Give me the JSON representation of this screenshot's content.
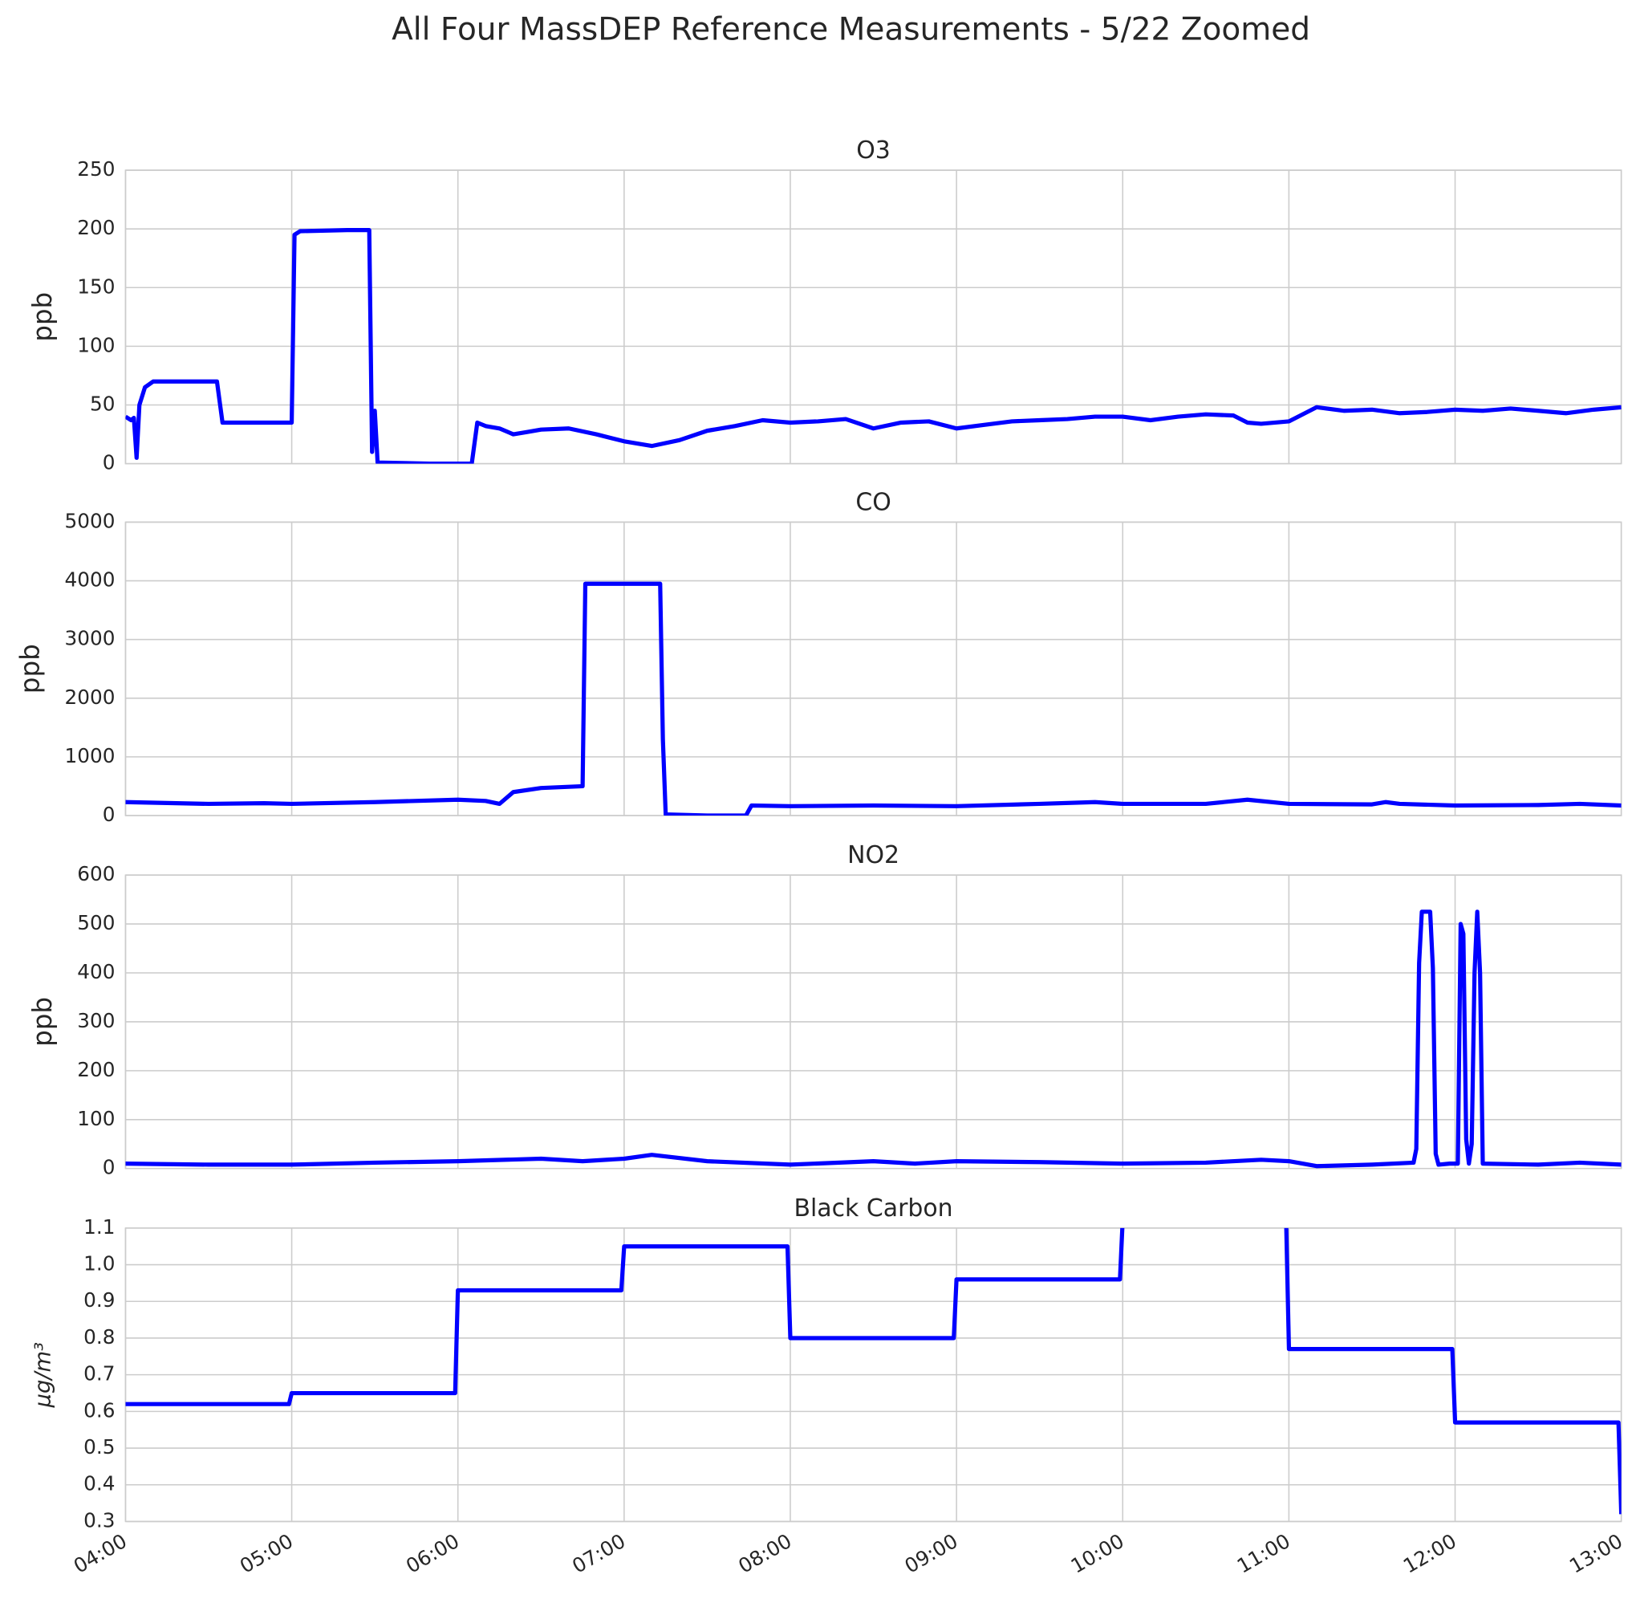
{
  "title": "All Four MassDEP Reference Measurements - 5/22 Zoomed",
  "xlim": [
    "04:00",
    "13:00"
  ],
  "xticks": [
    "04:00",
    "05:00",
    "06:00",
    "07:00",
    "08:00",
    "09:00",
    "10:00",
    "11:00",
    "12:00",
    "13:00"
  ],
  "chart_data": [
    {
      "type": "line",
      "title": "O3",
      "ylabel": "ppb",
      "color": "#0000ff",
      "grid": true,
      "ylim": [
        0,
        250
      ],
      "yticks": [
        0,
        50,
        100,
        150,
        200,
        250
      ],
      "x": [
        "04:00",
        "04:02",
        "04:03",
        "04:04",
        "04:05",
        "04:07",
        "04:10",
        "04:33",
        "04:35",
        "05:00",
        "05:01",
        "05:03",
        "05:20",
        "05:28",
        "05:29",
        "05:30",
        "05:31",
        "05:50",
        "06:05",
        "06:07",
        "06:10",
        "06:15",
        "06:20",
        "06:25",
        "06:30",
        "06:40",
        "06:50",
        "07:00",
        "07:10",
        "07:20",
        "07:30",
        "07:40",
        "07:50",
        "08:00",
        "08:10",
        "08:20",
        "08:30",
        "08:40",
        "08:50",
        "09:00",
        "09:10",
        "09:20",
        "09:30",
        "09:40",
        "09:50",
        "10:00",
        "10:10",
        "10:20",
        "10:30",
        "10:40",
        "10:45",
        "10:50",
        "11:00",
        "11:10",
        "11:20",
        "11:30",
        "11:40",
        "11:50",
        "12:00",
        "12:10",
        "12:20",
        "12:30",
        "12:40",
        "12:50",
        "13:00"
      ],
      "values": [
        40,
        37,
        39,
        5,
        50,
        65,
        70,
        70,
        35,
        35,
        195,
        198,
        199,
        199,
        10,
        45,
        1,
        0,
        0,
        35,
        32,
        30,
        25,
        27,
        29,
        30,
        25,
        19,
        15,
        20,
        28,
        32,
        37,
        35,
        36,
        38,
        30,
        35,
        36,
        30,
        33,
        36,
        37,
        38,
        40,
        40,
        37,
        40,
        42,
        41,
        35,
        34,
        36,
        48,
        45,
        46,
        43,
        44,
        46,
        45,
        47,
        45,
        43,
        46,
        48
      ]
    },
    {
      "type": "line",
      "title": "CO",
      "ylabel": "ppb",
      "color": "#0000ff",
      "grid": true,
      "ylim": [
        0,
        5000
      ],
      "yticks": [
        0,
        1000,
        2000,
        3000,
        4000,
        5000
      ],
      "x": [
        "04:00",
        "04:30",
        "04:50",
        "05:00",
        "05:30",
        "06:00",
        "06:10",
        "06:15",
        "06:20",
        "06:30",
        "06:45",
        "06:46",
        "07:00",
        "07:13",
        "07:14",
        "07:15",
        "07:30",
        "07:44",
        "07:46",
        "08:00",
        "08:30",
        "09:00",
        "09:30",
        "09:50",
        "10:00",
        "10:30",
        "10:45",
        "11:00",
        "11:30",
        "11:35",
        "11:40",
        "12:00",
        "12:30",
        "12:45",
        "13:00"
      ],
      "values": [
        230,
        200,
        210,
        200,
        230,
        270,
        250,
        200,
        400,
        470,
        500,
        3950,
        3950,
        3950,
        1300,
        20,
        0,
        0,
        170,
        160,
        170,
        160,
        200,
        230,
        200,
        200,
        270,
        200,
        190,
        230,
        200,
        170,
        180,
        200,
        170
      ]
    },
    {
      "type": "line",
      "title": "NO2",
      "ylabel": "ppb",
      "color": "#0000ff",
      "grid": true,
      "ylim": [
        0,
        600
      ],
      "yticks": [
        0,
        100,
        200,
        300,
        400,
        500,
        600
      ],
      "x": [
        "04:00",
        "04:30",
        "05:00",
        "05:30",
        "06:00",
        "06:30",
        "06:45",
        "07:00",
        "07:10",
        "07:30",
        "08:00",
        "08:30",
        "08:45",
        "09:00",
        "09:30",
        "10:00",
        "10:30",
        "10:50",
        "11:00",
        "11:10",
        "11:30",
        "11:45",
        "11:46",
        "11:47",
        "11:48",
        "11:51",
        "11:52",
        "11:53",
        "11:54",
        "11:58",
        "12:01",
        "12:02",
        "12:03",
        "12:04",
        "12:05",
        "12:06",
        "12:07",
        "12:08",
        "12:09",
        "12:10",
        "12:30",
        "12:45",
        "13:00"
      ],
      "values": [
        10,
        8,
        8,
        12,
        15,
        20,
        15,
        20,
        28,
        15,
        8,
        15,
        10,
        15,
        13,
        10,
        12,
        18,
        15,
        5,
        8,
        12,
        40,
        420,
        525,
        525,
        410,
        30,
        8,
        10,
        10,
        500,
        480,
        60,
        10,
        50,
        400,
        525,
        400,
        10,
        8,
        12,
        8
      ]
    },
    {
      "type": "line",
      "title": "Black Carbon",
      "ylabel": "μg/m³",
      "color": "#0000ff",
      "grid": true,
      "ylim": [
        0.3,
        1.1
      ],
      "yticks": [
        0.3,
        0.4,
        0.5,
        0.6,
        0.7,
        0.8,
        0.9,
        {
          "value": 1,
          "label": "1.0"
        },
        1.1
      ],
      "x": [
        "04:00",
        "04:59",
        "05:00",
        "05:59",
        "06:00",
        "06:59",
        "07:00",
        "07:59",
        "08:00",
        "08:59",
        "09:00",
        "09:59",
        "10:00",
        "10:59",
        "11:00",
        "11:59",
        "12:00",
        "12:59",
        "13:00"
      ],
      "values": [
        0.62,
        0.62,
        0.65,
        0.65,
        0.93,
        0.93,
        1.05,
        1.05,
        0.8,
        0.8,
        0.96,
        0.96,
        1.12,
        1.12,
        0.77,
        0.77,
        0.57,
        0.57,
        0.32
      ]
    }
  ]
}
